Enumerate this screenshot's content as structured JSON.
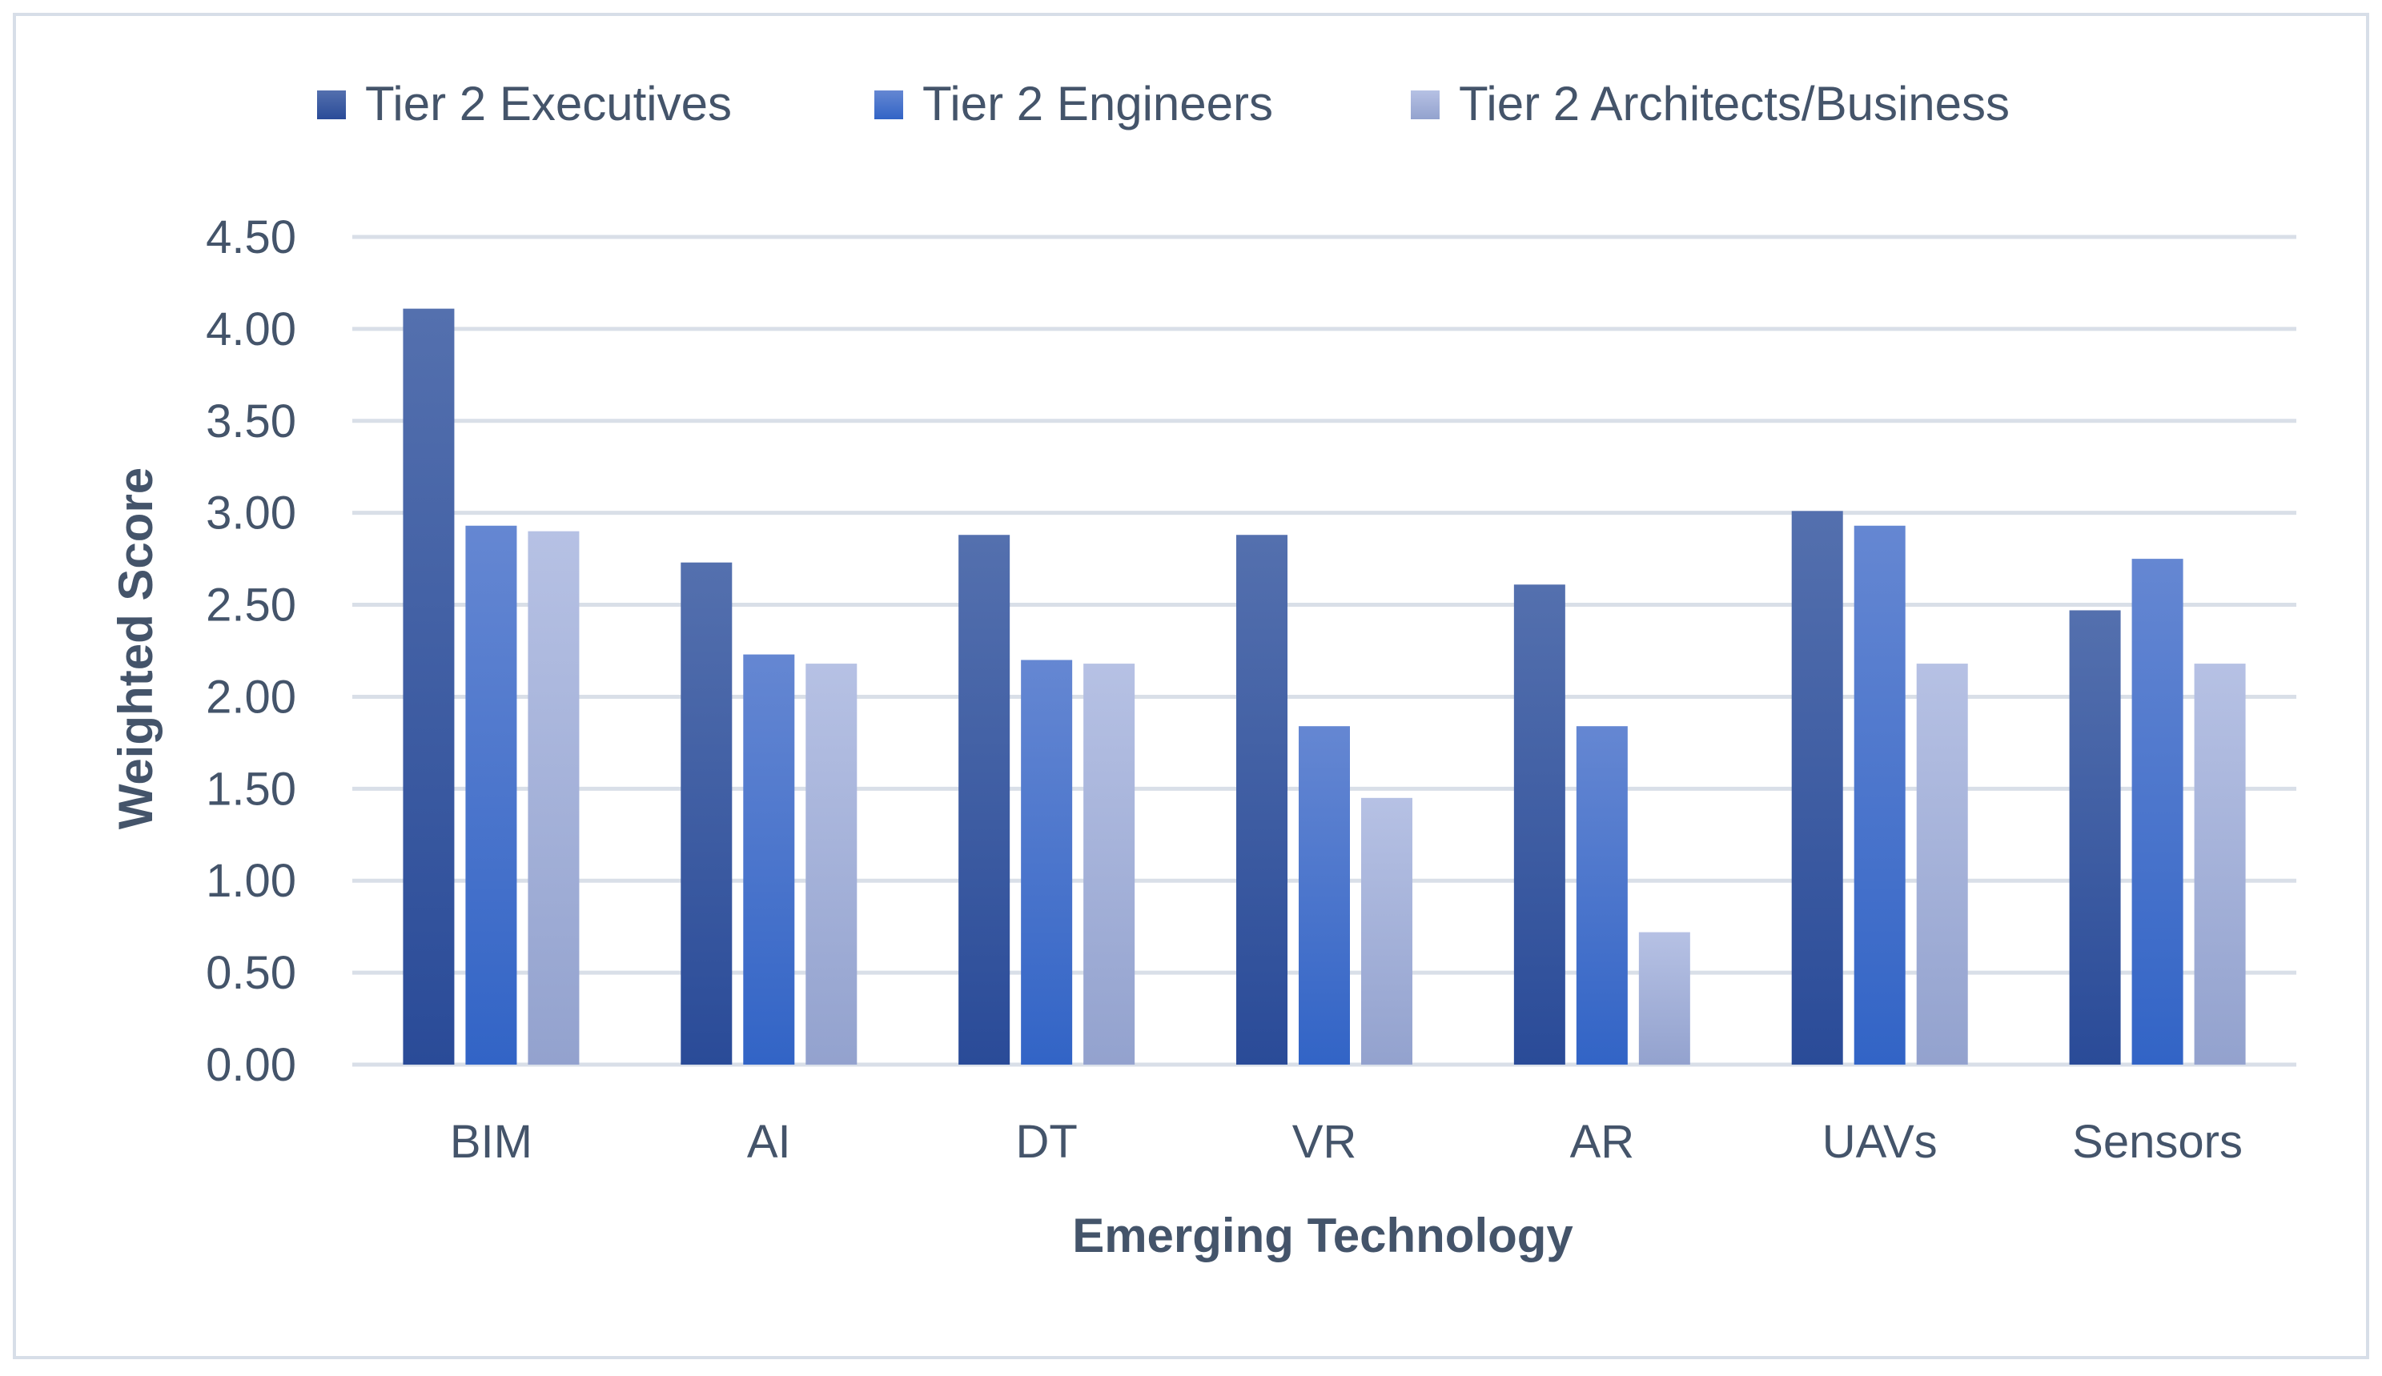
{
  "chart_data": {
    "type": "bar",
    "title": "",
    "xlabel": "Emerging Technology",
    "ylabel": "Weighted Score",
    "categories": [
      "BIM",
      "AI",
      "DT",
      "VR",
      "AR",
      "UAVs",
      "Sensors"
    ],
    "series": [
      {
        "name": "Tier 2 Executives",
        "color": "#2E4E9C",
        "values": [
          4.11,
          2.73,
          2.88,
          2.88,
          2.61,
          3.01,
          2.47
        ]
      },
      {
        "name": "Tier 2 Engineers",
        "color": "#3A6ACB",
        "values": [
          2.93,
          2.23,
          2.2,
          1.84,
          1.84,
          2.93,
          2.75
        ]
      },
      {
        "name": "Tier 2 Architects/Business",
        "color": "#A7B3DC",
        "values": [
          2.9,
          2.18,
          2.18,
          1.45,
          0.72,
          2.18,
          2.18
        ]
      }
    ],
    "ylim": [
      0,
      4.5
    ],
    "yticks": [
      "0.00",
      "0.50",
      "1.00",
      "1.50",
      "2.00",
      "2.50",
      "3.00",
      "3.50",
      "4.00",
      "4.50"
    ],
    "grid": true,
    "legend": "top"
  }
}
